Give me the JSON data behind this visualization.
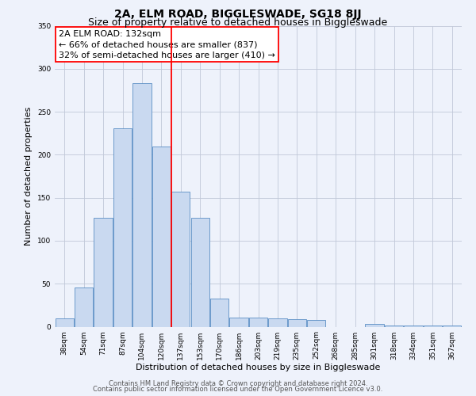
{
  "title": "2A, ELM ROAD, BIGGLESWADE, SG18 8JJ",
  "subtitle": "Size of property relative to detached houses in Biggleswade",
  "xlabel": "Distribution of detached houses by size in Biggleswade",
  "ylabel": "Number of detached properties",
  "bar_labels": [
    "38sqm",
    "54sqm",
    "71sqm",
    "87sqm",
    "104sqm",
    "120sqm",
    "137sqm",
    "153sqm",
    "170sqm",
    "186sqm",
    "203sqm",
    "219sqm",
    "235sqm",
    "252sqm",
    "268sqm",
    "285sqm",
    "301sqm",
    "318sqm",
    "334sqm",
    "351sqm",
    "367sqm"
  ],
  "bar_values": [
    10,
    46,
    127,
    231,
    283,
    210,
    157,
    127,
    33,
    11,
    11,
    10,
    9,
    8,
    0,
    0,
    3,
    1,
    1,
    1,
    1
  ],
  "bar_color": "#c9d9f0",
  "bar_edge_color": "#5b8ec4",
  "ylim": [
    0,
    350
  ],
  "vline_position": 5.5,
  "vline_color": "red",
  "annotation_title": "2A ELM ROAD: 132sqm",
  "annotation_line1": "← 66% of detached houses are smaller (837)",
  "annotation_line2": "32% of semi-detached houses are larger (410) →",
  "annotation_box_color": "white",
  "annotation_box_edge": "red",
  "footer1": "Contains HM Land Registry data © Crown copyright and database right 2024.",
  "footer2": "Contains public sector information licensed under the Open Government Licence v3.0.",
  "bg_color": "#eef2fb",
  "plot_bg_color": "#eef2fb",
  "grid_color": "#c0c8d8",
  "title_fontsize": 10,
  "subtitle_fontsize": 9,
  "axis_label_fontsize": 8,
  "tick_fontsize": 6.5,
  "annotation_fontsize": 8,
  "footer_fontsize": 6
}
